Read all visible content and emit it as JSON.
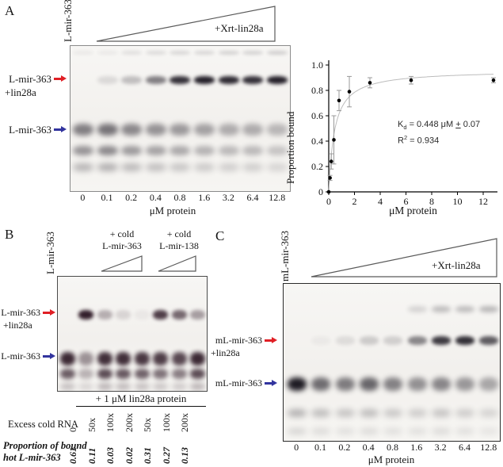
{
  "colors": {
    "bound_arrow": "#e01f25",
    "free_arrow": "#32349e",
    "curve": "#bcbcbc",
    "error_bar": "#9a9a9a",
    "point": "#000000"
  },
  "panel_a": {
    "label": "A",
    "lane_header": "L-mir-363",
    "wedge_label": "+Xrt-lin28a",
    "bound_label_line1": "L-mir-363",
    "bound_label_line2": "+lin28a",
    "free_label": "L-mir-363",
    "lane_labels": [
      "0",
      "0.1",
      "0.2",
      "0.4",
      "0.8",
      "1.6",
      "3.2",
      "6.4",
      "12.8"
    ],
    "axis_label": "μM protein"
  },
  "panel_b": {
    "label": "B",
    "lane_header": "L-mir-363",
    "competitor1_line1": "+ cold",
    "competitor1_line2": "L-mir-363",
    "competitor2_line1": "+ cold",
    "competitor2_line2": "L-mir-138",
    "bound_label_line1": "L-mir-363",
    "bound_label_line2": "+lin28a",
    "free_label": "L-mir-363",
    "table": {
      "header": "+ 1 μM lin28a protein",
      "row1_label": "Excess cold RNA",
      "row1_values": [
        "0",
        "50x",
        "100x",
        "200x",
        "50x",
        "100x",
        "200x"
      ],
      "row2_label_line1": "Proportion of bound",
      "row2_label_line2": "hot L-mir-363",
      "row2_values": [
        "0.61",
        "0.11",
        "0.03",
        "0.02",
        "0.31",
        "0.27",
        "0.13"
      ]
    }
  },
  "panel_c": {
    "label": "C",
    "lane_header": "mL-mir-363",
    "wedge_label": "+Xrt-lin28a",
    "bound_label_line1": "mL-mir-363",
    "bound_label_line2": "+lin28a",
    "free_label": "mL-mir-363",
    "lane_labels": [
      "0",
      "0.1",
      "0.2",
      "0.4",
      "0.8",
      "1.6",
      "3.2",
      "6.4",
      "12.8"
    ],
    "axis_label": "μM protein"
  },
  "chart_data": {
    "type": "scatter",
    "x": [
      0,
      0.1,
      0.2,
      0.4,
      0.8,
      1.6,
      3.2,
      6.4,
      12.8
    ],
    "y": [
      0.0,
      0.11,
      0.24,
      0.41,
      0.72,
      0.79,
      0.86,
      0.88,
      0.88
    ],
    "yerr": [
      0.0,
      0.02,
      0.06,
      0.19,
      0.08,
      0.12,
      0.04,
      0.03,
      0.02
    ],
    "fit_curve": {
      "model": "one_site_binding",
      "Kd_uM": 0.448,
      "Bmax": 0.96
    },
    "xlabel": "μM protein",
    "ylabel": "Proportion bound",
    "xlim": [
      0,
      13
    ],
    "ylim": [
      0,
      1.0
    ],
    "xticks": [
      0,
      2,
      4,
      6,
      8,
      10,
      12
    ],
    "ytick_labels": [
      "0",
      "0.2",
      "0.4",
      "0.6",
      "0.8",
      "1.0"
    ],
    "grid": false,
    "legend": "none",
    "annotation": {
      "kd_base": "K",
      "kd_sub": "d",
      "kd_eq": " = 0.448 μM ",
      "kd_pm": "+",
      "kd_err": " 0.07",
      "r_base": "R",
      "r_sup": "2",
      "r_eq": " = 0.934"
    }
  },
  "gels": {
    "a": {
      "color": "#25212a",
      "first_lane_x": 16,
      "lane_spacing": 30.6,
      "band_width": 26,
      "bands": [
        {
          "y": 6,
          "h": 5,
          "blur": 2,
          "intensities": [
            0.06,
            0.06,
            0.1,
            0.12,
            0.14,
            0.14,
            0.16,
            0.16,
            0.18
          ]
        },
        {
          "y": 38,
          "h": 10,
          "blur": 2.5,
          "intensities": [
            0,
            0.12,
            0.25,
            0.55,
            0.92,
            1,
            0.95,
            0.92,
            1
          ]
        },
        {
          "y": 98,
          "h": 15,
          "blur": 3.5,
          "intensities": [
            0.55,
            0.6,
            0.5,
            0.45,
            0.42,
            0.38,
            0.33,
            0.33,
            0.28
          ]
        },
        {
          "y": 126,
          "h": 12,
          "blur": 3.5,
          "intensities": [
            0.45,
            0.5,
            0.42,
            0.38,
            0.35,
            0.3,
            0.27,
            0.27,
            0.22
          ]
        },
        {
          "y": 148,
          "h": 10,
          "blur": 4,
          "intensities": [
            0.3,
            0.33,
            0.28,
            0.25,
            0.22,
            0.2,
            0.18,
            0.18,
            0.15
          ]
        }
      ]
    },
    "b": {
      "color": "#331f2b",
      "first_lane_x": 12,
      "lane_spacing": 23.5,
      "band_width": 19,
      "bands": [
        {
          "y": 42,
          "h": 12,
          "blur": 2.5,
          "intensities": [
            0,
            1,
            0.32,
            0.14,
            0.05,
            0.85,
            0.65,
            0.4
          ]
        },
        {
          "y": 95,
          "h": 17,
          "blur": 3,
          "intensities": [
            0.95,
            0.45,
            0.92,
            0.92,
            0.88,
            0.85,
            0.8,
            0.95
          ]
        },
        {
          "y": 116,
          "h": 13,
          "blur": 3,
          "intensities": [
            0.7,
            0.3,
            0.78,
            0.72,
            0.68,
            0.6,
            0.55,
            0.78
          ]
        },
        {
          "y": 134,
          "h": 9,
          "blur": 3.5,
          "intensities": [
            0.25,
            0.15,
            0.3,
            0.28,
            0.25,
            0.22,
            0.2,
            0.3
          ]
        }
      ]
    },
    "c": {
      "color": "#1f1c24",
      "first_lane_x": 17,
      "lane_spacing": 30.3,
      "band_width": 24,
      "bands": [
        {
          "y": 28,
          "h": 8,
          "blur": 3,
          "intensities": [
            0,
            0,
            0,
            0,
            0,
            0.15,
            0.25,
            0.25,
            0.28
          ]
        },
        {
          "y": 66,
          "h": 11,
          "blur": 2.5,
          "intensities": [
            0,
            0.04,
            0.1,
            0.18,
            0.16,
            0.5,
            0.85,
            0.9,
            0.7
          ]
        },
        {
          "y": 118,
          "h": 17,
          "blur": 3.5,
          "intensities": [
            1,
            0.62,
            0.55,
            0.65,
            0.52,
            0.45,
            0.5,
            0.42,
            0.35
          ]
        },
        {
          "y": 158,
          "h": 10,
          "blur": 4,
          "intensities": [
            0.3,
            0.25,
            0.22,
            0.25,
            0.2,
            0.18,
            0.22,
            0.18,
            0.15
          ]
        },
        {
          "y": 182,
          "h": 8,
          "blur": 4,
          "intensities": [
            0.15,
            0.12,
            0.1,
            0.12,
            0.1,
            0.1,
            0.12,
            0.1,
            0.08
          ]
        }
      ]
    }
  }
}
